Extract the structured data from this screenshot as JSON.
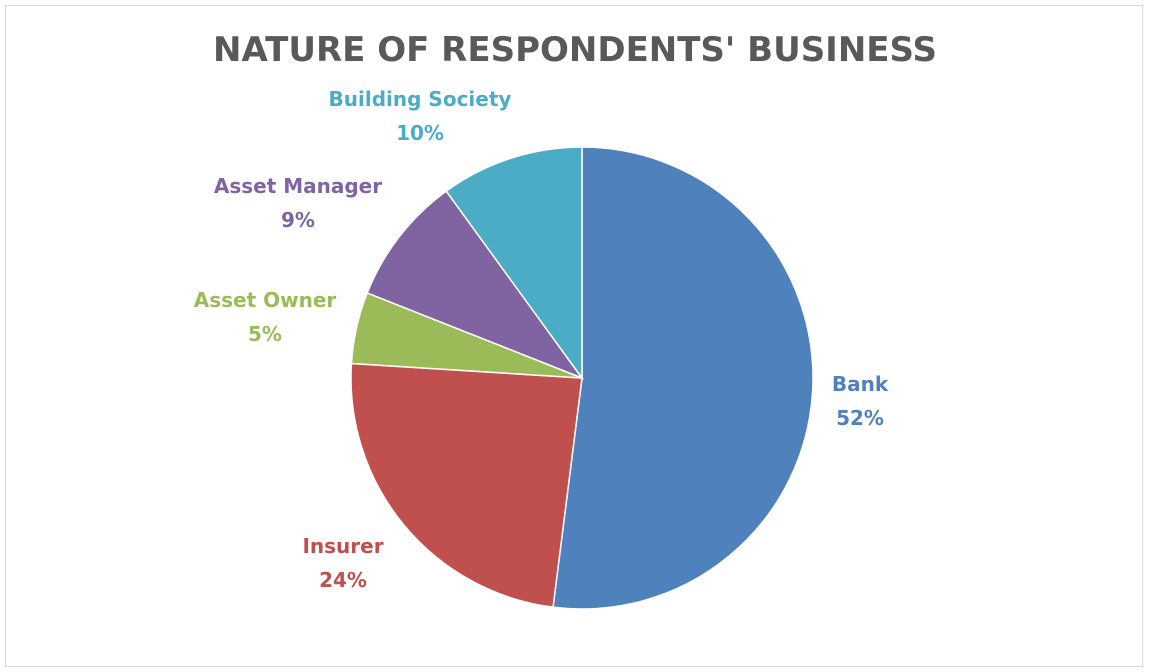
{
  "chart_data": {
    "type": "pie",
    "title": "NATURE OF RESPONDENTS' BUSINESS",
    "slices": [
      {
        "name": "Bank",
        "value": 52,
        "label": "52%",
        "color": "#4f81bd"
      },
      {
        "name": "Insurer",
        "value": 24,
        "label": "24%",
        "color": "#c0504d"
      },
      {
        "name": "Asset Owner",
        "value": 5,
        "label": "5%",
        "color": "#9bbb59"
      },
      {
        "name": "Asset Manager",
        "value": 9,
        "label": "9%",
        "color": "#8064a2"
      },
      {
        "name": "Building Society",
        "value": 10,
        "label": "10%",
        "color": "#4bacc6"
      }
    ],
    "start_angle": "12 o'clock",
    "direction": "clockwise",
    "legend": "none",
    "data_labels": "outside"
  }
}
